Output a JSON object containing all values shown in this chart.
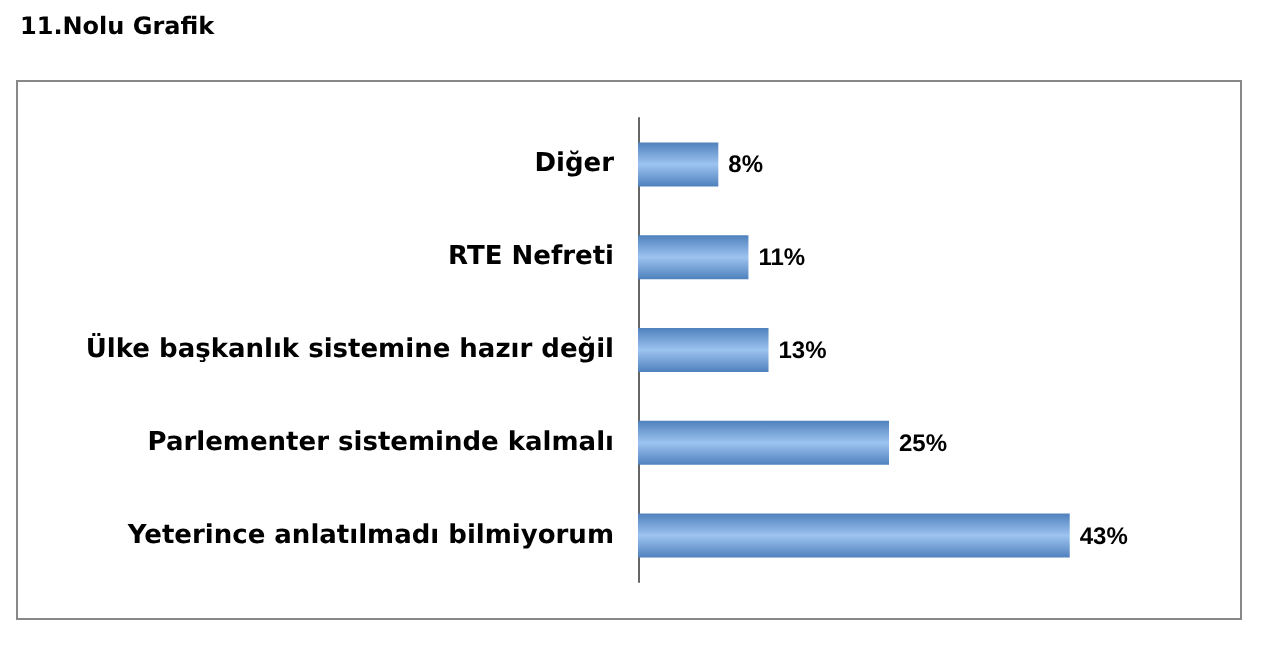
{
  "chart_data": {
    "type": "bar",
    "orientation": "horizontal",
    "title": "11.Nolu Grafik",
    "categories": [
      "Diğer",
      "RTE Nefreti",
      "Ülke başkanlık sistemine hazır değil",
      "Parlementer sisteminde kalmalı",
      "Yeterince anlatılmadı bilmiyorum"
    ],
    "values": [
      8,
      11,
      13,
      25,
      43
    ],
    "value_labels": [
      "8%",
      "11%",
      "13%",
      "25%",
      "43%"
    ],
    "color": "#4f81bd",
    "grid": false
  }
}
